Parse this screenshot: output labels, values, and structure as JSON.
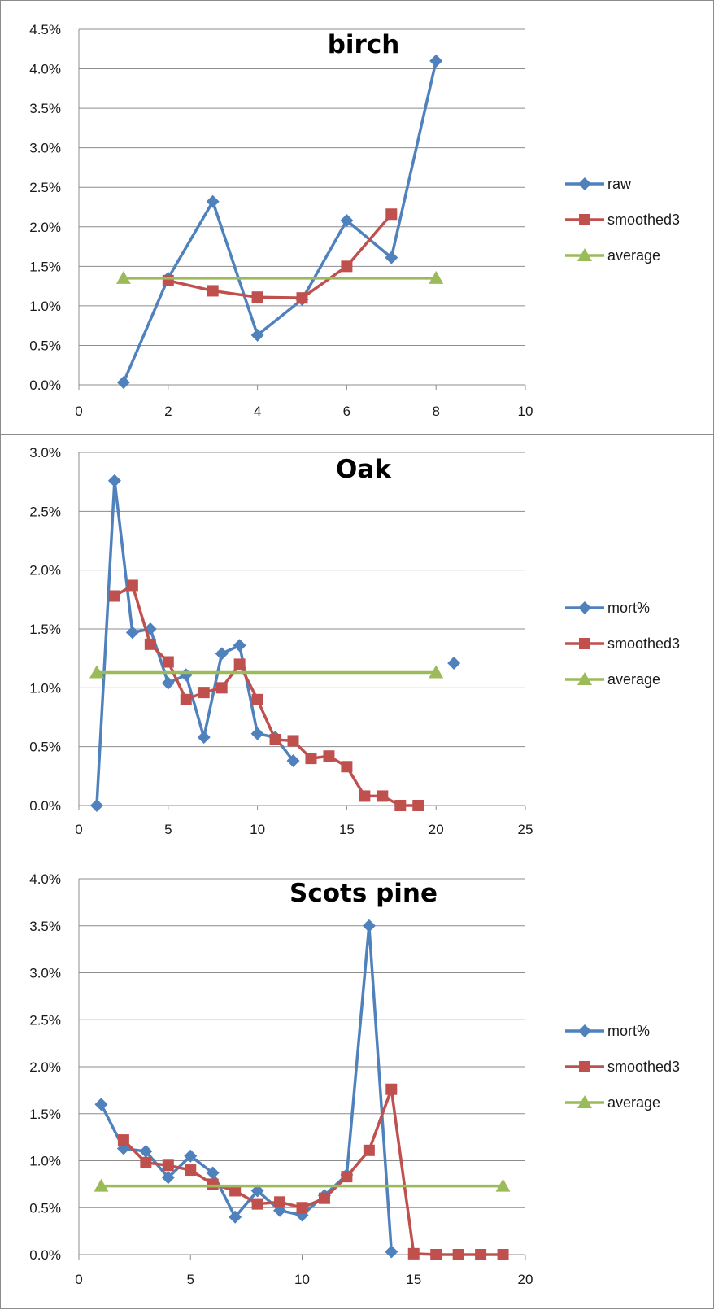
{
  "colors": {
    "raw": "#4f81bd",
    "smoothed": "#c0504d",
    "average": "#9bbb59",
    "grid": "#8c8c8c"
  },
  "chart_data": [
    {
      "type": "line",
      "title": "birch",
      "xlim": [
        0,
        10
      ],
      "xticks": [
        0,
        2,
        4,
        6,
        8,
        10
      ],
      "ylim": [
        0,
        0.045
      ],
      "yticks": [
        0,
        0.005,
        0.01,
        0.015,
        0.02,
        0.025,
        0.03,
        0.035,
        0.04,
        0.045
      ],
      "yticklabels": [
        "0.0%",
        "0.5%",
        "1.0%",
        "1.5%",
        "2.0%",
        "2.5%",
        "3.0%",
        "3.5%",
        "4.0%",
        "4.5%"
      ],
      "legend_position": "right",
      "series": [
        {
          "name": "raw",
          "marker": "diamond",
          "x": [
            1,
            2,
            3,
            4,
            5,
            6,
            7,
            8
          ],
          "y": [
            0.0003,
            0.0135,
            0.0232,
            0.0063,
            0.0108,
            0.0208,
            0.0161,
            0.041
          ]
        },
        {
          "name": "smoothed3",
          "marker": "square",
          "x": [
            2,
            3,
            4,
            5,
            6,
            7
          ],
          "y": [
            0.0132,
            0.0119,
            0.0111,
            0.011,
            0.015,
            0.0216
          ]
        },
        {
          "name": "average",
          "marker": "triangle",
          "x": [
            1,
            8
          ],
          "y": [
            0.0135,
            0.0135
          ]
        }
      ]
    },
    {
      "type": "line",
      "title": "Oak",
      "xlim": [
        0,
        25
      ],
      "xticks": [
        0,
        5,
        10,
        15,
        20,
        25
      ],
      "ylim": [
        0,
        0.03
      ],
      "yticks": [
        0,
        0.005,
        0.01,
        0.015,
        0.02,
        0.025,
        0.03
      ],
      "yticklabels": [
        "0.0%",
        "0.5%",
        "1.0%",
        "1.5%",
        "2.0%",
        "2.5%",
        "3.0%"
      ],
      "legend_position": "right",
      "series": [
        {
          "name": "mort%",
          "marker": "diamond",
          "x": [
            1,
            2,
            3,
            4,
            5,
            6,
            7,
            8,
            9,
            10,
            11,
            12,
            21
          ],
          "y": [
            0,
            0.0276,
            0.0147,
            0.015,
            0.0104,
            0.0111,
            0.0058,
            0.0129,
            0.0136,
            0.0061,
            0.0058,
            0.0038,
            0.0121
          ],
          "breaks_after": [
            12
          ]
        },
        {
          "name": "smoothed3",
          "marker": "square",
          "x": [
            2,
            3,
            4,
            5,
            6,
            7,
            8,
            9,
            10,
            11,
            12,
            13,
            14,
            15,
            16,
            17,
            18,
            19
          ],
          "y": [
            0.0178,
            0.0187,
            0.0137,
            0.0122,
            0.009,
            0.0096,
            0.01,
            0.012,
            0.009,
            0.0056,
            0.0055,
            0.004,
            0.0042,
            0.0033,
            0.0008,
            0.0008,
            0,
            0
          ]
        },
        {
          "name": "average",
          "marker": "triangle",
          "x": [
            1,
            20
          ],
          "y": [
            0.0113,
            0.0113
          ]
        }
      ]
    },
    {
      "type": "line",
      "title": "Scots pine",
      "xlim": [
        0,
        20
      ],
      "xticks": [
        0,
        5,
        10,
        15,
        20
      ],
      "ylim": [
        0,
        0.04
      ],
      "yticks": [
        0,
        0.005,
        0.01,
        0.015,
        0.02,
        0.025,
        0.03,
        0.035,
        0.04
      ],
      "yticklabels": [
        "0.0%",
        "0.5%",
        "1.0%",
        "1.5%",
        "2.0%",
        "2.5%",
        "3.0%",
        "3.5%",
        "4.0%"
      ],
      "legend_position": "right",
      "series": [
        {
          "name": "mort%",
          "marker": "diamond",
          "x": [
            1,
            2,
            3,
            4,
            5,
            6,
            7,
            8,
            9,
            10,
            11,
            12,
            13,
            14
          ],
          "y": [
            0.016,
            0.0113,
            0.011,
            0.0082,
            0.0105,
            0.0087,
            0.004,
            0.0068,
            0.0047,
            0.0042,
            0.0063,
            0.0085,
            0.035,
            0.0003
          ]
        },
        {
          "name": "smoothed3",
          "marker": "square",
          "x": [
            2,
            3,
            4,
            5,
            6,
            7,
            8,
            9,
            10,
            11,
            12,
            13,
            14,
            15,
            16,
            17,
            18,
            19
          ],
          "y": [
            0.0122,
            0.0098,
            0.0095,
            0.009,
            0.0075,
            0.0068,
            0.0054,
            0.0056,
            0.005,
            0.006,
            0.0083,
            0.0111,
            0.0176,
            0.0001,
            0,
            0,
            0,
            0
          ]
        },
        {
          "name": "average",
          "marker": "triangle",
          "x": [
            1,
            19
          ],
          "y": [
            0.0073,
            0.0073
          ]
        }
      ]
    }
  ]
}
